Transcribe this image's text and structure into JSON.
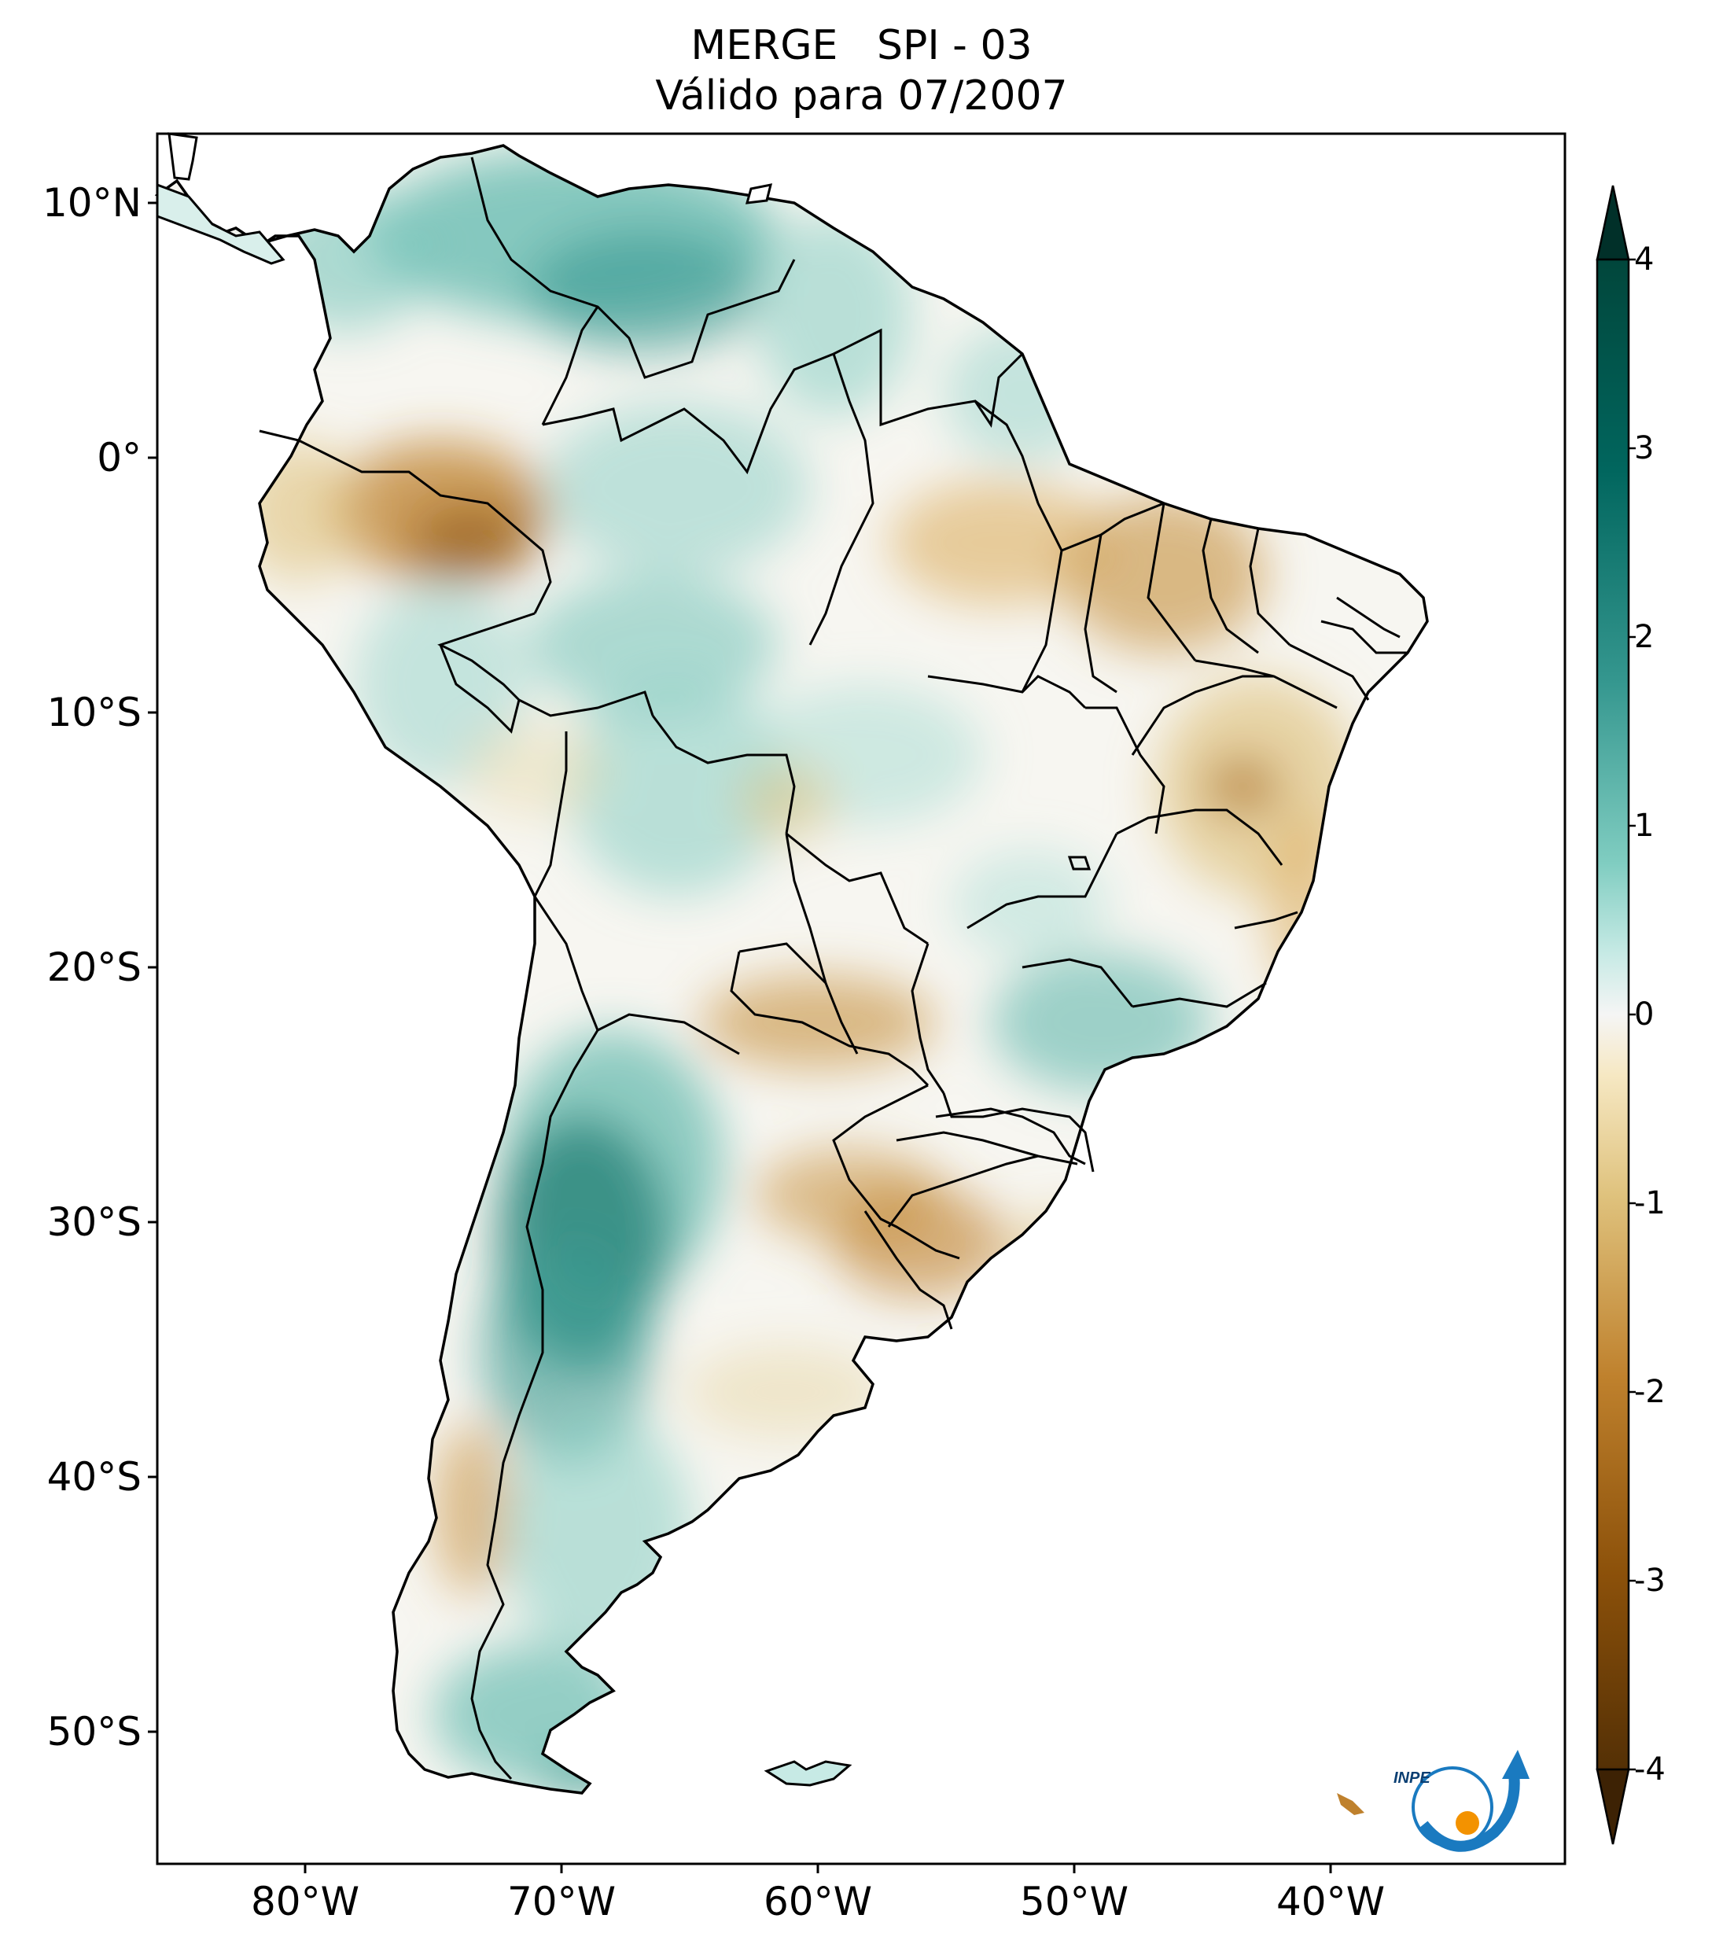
{
  "title": {
    "line1": "MERGE   SPI - 03",
    "line2": "Válido para 07/2007"
  },
  "map": {
    "lon_range": [
      -85,
      -30
    ],
    "lat_range": [
      -56,
      13
    ],
    "lat_ticks": [
      "10°N",
      "0°",
      "10°S",
      "20°S",
      "30°S",
      "40°S",
      "50°S"
    ],
    "lon_ticks": [
      "80°W",
      "70°W",
      "60°W",
      "50°W",
      "40°W"
    ]
  },
  "colorbar": {
    "ticks": [
      "4",
      "3",
      "2",
      "1",
      "0",
      "-1",
      "-2",
      "-3",
      "-4"
    ],
    "range": [
      -4,
      4
    ],
    "colors": {
      "wet_dark": "#01463b",
      "wet_mid": "#35978f",
      "wet_light": "#c7eae5",
      "neutral": "#f5f5f5",
      "dry_light": "#f6e8c3",
      "dry_mid": "#bf812d",
      "dry_dark": "#543005"
    }
  },
  "logo": {
    "text": "INPE"
  }
}
